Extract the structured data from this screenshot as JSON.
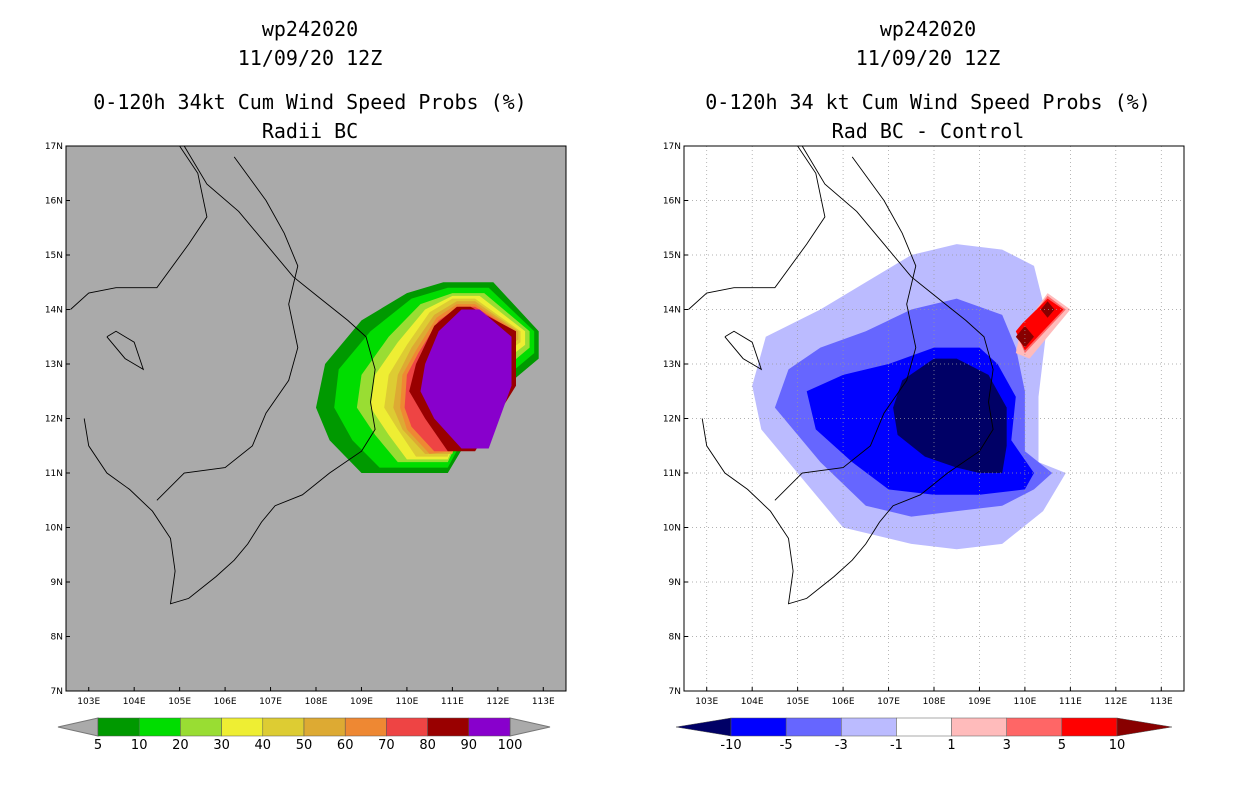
{
  "chart_data": [
    {
      "type": "heatmap",
      "storm_id": "wp242020",
      "date": "11/09/20 12Z",
      "title": "0-120h 34kt Cum Wind Speed Probs (%)",
      "subtitle": "Radii BC",
      "x_tick_labels": [
        "103E",
        "104E",
        "105E",
        "106E",
        "107E",
        "108E",
        "109E",
        "110E",
        "111E",
        "112E",
        "113E"
      ],
      "y_tick_labels": [
        "7N",
        "8N",
        "9N",
        "10N",
        "11N",
        "12N",
        "13N",
        "14N",
        "15N",
        "16N",
        "17N"
      ],
      "xlim": [
        102.5,
        113.5
      ],
      "ylim": [
        7,
        17
      ],
      "grid": false,
      "background_color": "#aaaaaa",
      "colorbar_labels": [
        "5",
        "10",
        "20",
        "30",
        "40",
        "50",
        "60",
        "70",
        "80",
        "90",
        "100"
      ],
      "colorbar_colors": [
        "#009900",
        "#00dd00",
        "#99dd33",
        "#eeee33",
        "#ddcc33",
        "#ddaa33",
        "#ee8833",
        "#ee4444",
        "#990000",
        "#8800cc"
      ],
      "contour_levels": [
        {
          "level": 5,
          "color": "#009900",
          "points": [
            [
              109.0,
              11.0
            ],
            [
              110.9,
              11.0
            ],
            [
              111.9,
              12.4
            ],
            [
              112.9,
              13.1
            ],
            [
              112.9,
              13.6
            ],
            [
              111.9,
              14.5
            ],
            [
              110.8,
              14.5
            ],
            [
              110.0,
              14.3
            ],
            [
              109.0,
              13.8
            ],
            [
              108.2,
              13.0
            ],
            [
              108.0,
              12.2
            ],
            [
              108.3,
              11.6
            ]
          ]
        },
        {
          "level": 10,
          "color": "#00dd00",
          "points": [
            [
              109.4,
              11.1
            ],
            [
              110.9,
              11.1
            ],
            [
              111.8,
              12.5
            ],
            [
              112.8,
              13.2
            ],
            [
              112.8,
              13.6
            ],
            [
              111.8,
              14.4
            ],
            [
              110.9,
              14.4
            ],
            [
              110.1,
              14.2
            ],
            [
              109.2,
              13.6
            ],
            [
              108.5,
              12.9
            ],
            [
              108.4,
              12.2
            ],
            [
              108.8,
              11.6
            ]
          ]
        },
        {
          "level": 20,
          "color": "#99dd33",
          "points": [
            [
              109.8,
              11.2
            ],
            [
              110.9,
              11.2
            ],
            [
              111.7,
              12.6
            ],
            [
              112.7,
              13.3
            ],
            [
              112.7,
              13.6
            ],
            [
              111.7,
              14.3
            ],
            [
              111.0,
              14.3
            ],
            [
              110.3,
              14.1
            ],
            [
              109.6,
              13.5
            ],
            [
              109.0,
              12.8
            ],
            [
              108.9,
              12.2
            ],
            [
              109.3,
              11.7
            ]
          ]
        },
        {
          "level": 30,
          "color": "#eeee33",
          "points": [
            [
              110.0,
              11.25
            ],
            [
              110.9,
              11.25
            ],
            [
              111.6,
              12.7
            ],
            [
              112.6,
              13.35
            ],
            [
              112.6,
              13.6
            ],
            [
              111.6,
              14.25
            ],
            [
              111.0,
              14.25
            ],
            [
              110.4,
              14.0
            ],
            [
              109.8,
              13.4
            ],
            [
              109.3,
              12.8
            ],
            [
              109.2,
              12.2
            ],
            [
              109.6,
              11.7
            ]
          ]
        },
        {
          "level": 40,
          "color": "#ddcc33",
          "points": [
            [
              110.2,
              11.3
            ],
            [
              110.9,
              11.3
            ],
            [
              111.5,
              12.8
            ],
            [
              112.5,
              13.4
            ],
            [
              112.5,
              13.6
            ],
            [
              111.5,
              14.2
            ],
            [
              111.0,
              14.2
            ],
            [
              110.5,
              13.95
            ],
            [
              110.0,
              13.35
            ],
            [
              109.6,
              12.8
            ],
            [
              109.5,
              12.2
            ],
            [
              109.8,
              11.8
            ]
          ]
        },
        {
          "level": 50,
          "color": "#ddaa33",
          "points": [
            [
              110.4,
              11.35
            ],
            [
              111.0,
              11.35
            ],
            [
              111.5,
              12.9
            ],
            [
              112.45,
              13.45
            ],
            [
              112.45,
              13.6
            ],
            [
              111.5,
              14.15
            ],
            [
              111.1,
              14.15
            ],
            [
              110.6,
              13.9
            ],
            [
              110.1,
              13.3
            ],
            [
              109.8,
              12.8
            ],
            [
              109.7,
              12.2
            ],
            [
              109.9,
              11.8
            ]
          ]
        },
        {
          "level": 60,
          "color": "#ee8833",
          "points": [
            [
              110.5,
              11.35
            ],
            [
              111.0,
              11.4
            ],
            [
              111.5,
              12.95
            ],
            [
              112.4,
              13.5
            ],
            [
              112.4,
              13.6
            ],
            [
              111.5,
              14.1
            ],
            [
              111.1,
              14.1
            ],
            [
              110.65,
              13.85
            ],
            [
              110.2,
              13.25
            ],
            [
              109.9,
              12.8
            ],
            [
              109.85,
              12.2
            ],
            [
              110.0,
              11.8
            ]
          ]
        },
        {
          "level": 70,
          "color": "#ee4444",
          "points": [
            [
              110.6,
              11.4
            ],
            [
              111.0,
              11.4
            ],
            [
              111.5,
              13.0
            ],
            [
              112.35,
              13.55
            ],
            [
              112.35,
              13.6
            ],
            [
              111.5,
              14.05
            ],
            [
              111.15,
              14.05
            ],
            [
              110.7,
              13.8
            ],
            [
              110.25,
              13.2
            ],
            [
              110.0,
              12.8
            ],
            [
              109.95,
              12.2
            ],
            [
              110.1,
              11.85
            ]
          ]
        },
        {
          "level": 80,
          "color": "#990000",
          "points": [
            [
              110.9,
              11.4
            ],
            [
              111.5,
              11.4
            ],
            [
              112.4,
              12.6
            ],
            [
              112.4,
              13.6
            ],
            [
              111.4,
              14.05
            ],
            [
              111.1,
              14.05
            ],
            [
              110.6,
              13.7
            ],
            [
              110.2,
              13.0
            ],
            [
              110.05,
              12.5
            ],
            [
              110.4,
              12.0
            ]
          ]
        },
        {
          "level": 90,
          "color": "#8800cc",
          "points": [
            [
              111.2,
              11.45
            ],
            [
              111.8,
              11.45
            ],
            [
              112.3,
              12.6
            ],
            [
              112.3,
              13.5
            ],
            [
              111.6,
              14.0
            ],
            [
              111.2,
              14.0
            ],
            [
              110.7,
              13.6
            ],
            [
              110.4,
              13.0
            ],
            [
              110.3,
              12.5
            ],
            [
              110.6,
              12.0
            ]
          ]
        }
      ]
    },
    {
      "type": "heatmap",
      "storm_id": "wp242020",
      "date": "11/09/20 12Z",
      "title": "0-120h 34 kt Cum Wind Speed Probs (%)",
      "subtitle": "Rad BC - Control",
      "x_tick_labels": [
        "103E",
        "104E",
        "105E",
        "106E",
        "107E",
        "108E",
        "109E",
        "110E",
        "111E",
        "112E",
        "113E"
      ],
      "y_tick_labels": [
        "7N",
        "8N",
        "9N",
        "10N",
        "11N",
        "12N",
        "13N",
        "14N",
        "15N",
        "16N",
        "17N"
      ],
      "xlim": [
        102.5,
        113.5
      ],
      "ylim": [
        7,
        17
      ],
      "grid": true,
      "background_color": "#ffffff",
      "colorbar_labels": [
        "-10",
        "-5",
        "-3",
        "-1",
        "1",
        "3",
        "5",
        "10"
      ],
      "colorbar_colors": [
        "#000066",
        "#0000ff",
        "#6666ff",
        "#bbbbff",
        "#ffffff",
        "#ffbbbb",
        "#ff6666",
        "#ff0000",
        "#880000"
      ],
      "contour_levels": [
        {
          "level": -1,
          "color": "#bbbbff",
          "points": [
            [
              105.0,
              11.0
            ],
            [
              106.0,
              10.0
            ],
            [
              107.5,
              9.7
            ],
            [
              108.5,
              9.6
            ],
            [
              109.5,
              9.7
            ],
            [
              110.4,
              10.3
            ],
            [
              110.9,
              11.0
            ],
            [
              110.3,
              11.2
            ],
            [
              110.3,
              12.4
            ],
            [
              110.5,
              13.8
            ],
            [
              110.2,
              14.8
            ],
            [
              109.5,
              15.1
            ],
            [
              108.5,
              15.2
            ],
            [
              107.5,
              15.0
            ],
            [
              106.5,
              14.5
            ],
            [
              105.5,
              14.0
            ],
            [
              104.3,
              13.5
            ],
            [
              104.0,
              12.6
            ],
            [
              104.2,
              11.8
            ]
          ]
        },
        {
          "level": -3,
          "color": "#6666ff",
          "points": [
            [
              105.5,
              11.2
            ],
            [
              106.5,
              10.4
            ],
            [
              107.5,
              10.2
            ],
            [
              108.5,
              10.3
            ],
            [
              109.5,
              10.4
            ],
            [
              110.2,
              10.7
            ],
            [
              110.6,
              11.0
            ],
            [
              110.0,
              11.4
            ],
            [
              110.0,
              12.5
            ],
            [
              109.8,
              13.3
            ],
            [
              109.5,
              13.9
            ],
            [
              108.5,
              14.2
            ],
            [
              107.5,
              14.0
            ],
            [
              106.5,
              13.6
            ],
            [
              105.5,
              13.3
            ],
            [
              104.8,
              12.9
            ],
            [
              104.5,
              12.2
            ]
          ]
        },
        {
          "level": -5,
          "color": "#0000ff",
          "points": [
            [
              106.2,
              11.2
            ],
            [
              107.0,
              10.7
            ],
            [
              108.0,
              10.6
            ],
            [
              109.0,
              10.6
            ],
            [
              110.0,
              10.7
            ],
            [
              110.2,
              11.0
            ],
            [
              109.7,
              11.6
            ],
            [
              109.8,
              12.4
            ],
            [
              109.4,
              13.0
            ],
            [
              109.0,
              13.3
            ],
            [
              108.0,
              13.3
            ],
            [
              107.0,
              13.0
            ],
            [
              106.0,
              12.8
            ],
            [
              105.2,
              12.5
            ],
            [
              105.4,
              11.8
            ]
          ]
        },
        {
          "level": -10,
          "color": "#000066",
          "points": [
            [
              107.2,
              11.7
            ],
            [
              107.8,
              11.3
            ],
            [
              108.5,
              11.1
            ],
            [
              109.0,
              11.0
            ],
            [
              109.5,
              11.0
            ],
            [
              109.6,
              11.5
            ],
            [
              109.6,
              12.2
            ],
            [
              109.2,
              12.8
            ],
            [
              108.5,
              13.1
            ],
            [
              108.0,
              13.1
            ],
            [
              107.3,
              12.7
            ],
            [
              107.1,
              12.2
            ]
          ]
        },
        {
          "level": 1,
          "color": "#ffbbbb",
          "points": [
            [
              109.8,
              13.2
            ],
            [
              110.1,
              13.1
            ],
            [
              111.0,
              14.0
            ],
            [
              110.5,
              14.3
            ],
            [
              109.9,
              13.6
            ]
          ]
        },
        {
          "level": 3,
          "color": "#ff6666",
          "points": [
            [
              109.9,
              13.4
            ],
            [
              110.0,
              13.2
            ],
            [
              110.9,
              14.0
            ],
            [
              110.5,
              14.25
            ],
            [
              110.0,
              13.7
            ]
          ]
        },
        {
          "level": 5,
          "color": "#ff0000",
          "points": [
            [
              109.8,
              13.6
            ],
            [
              110.0,
              13.25
            ],
            [
              110.85,
              14.0
            ],
            [
              110.5,
              14.2
            ],
            [
              109.95,
              13.75
            ]
          ]
        },
        {
          "level": 10,
          "color": "#880000",
          "points": [
            [
              109.8,
              13.5
            ],
            [
              110.0,
              13.3
            ],
            [
              110.2,
              13.5
            ],
            [
              110.0,
              13.7
            ]
          ]
        },
        {
          "level": 10,
          "color": "#880000",
          "points": [
            [
              110.35,
              14.0
            ],
            [
              110.5,
              13.85
            ],
            [
              110.65,
              14.0
            ],
            [
              110.5,
              14.15
            ]
          ]
        }
      ]
    }
  ]
}
